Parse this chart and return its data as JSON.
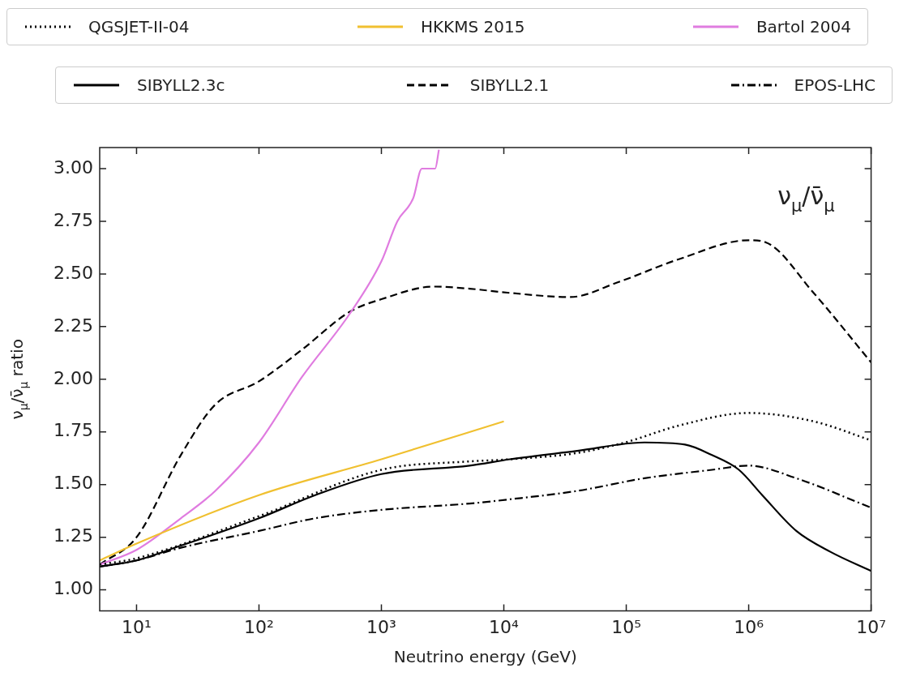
{
  "chart_data": {
    "type": "line",
    "xlabel": "Neutrino energy (GeV)",
    "ylabel": "ν$_{μ}$/ν̄$_{μ}$ ratio",
    "annotations": [
      "ν$_{μ}$/ν̄$_{μ}$"
    ],
    "log": "x",
    "xlim": [
      5,
      10000000
    ],
    "ylim": [
      0.9,
      3.1
    ],
    "xticks": [
      {
        "value": 10,
        "label": "10¹"
      },
      {
        "value": 100,
        "label": "10²"
      },
      {
        "value": 1000,
        "label": "10³"
      },
      {
        "value": 10000,
        "label": "10⁴"
      },
      {
        "value": 100000,
        "label": "10⁵"
      },
      {
        "value": 1000000,
        "label": "10⁶"
      },
      {
        "value": 10000000,
        "label": "10⁷"
      }
    ],
    "yticks": [
      {
        "value": 1,
        "label": "1.00"
      },
      {
        "value": 1.25,
        "label": "1.25"
      },
      {
        "value": 1.5,
        "label": "1.50"
      },
      {
        "value": 1.75,
        "label": "1.75"
      },
      {
        "value": 2,
        "label": "2.00"
      },
      {
        "value": 2.25,
        "label": "2.25"
      },
      {
        "value": 2.5,
        "label": "2.50"
      },
      {
        "value": 2.75,
        "label": "2.75"
      },
      {
        "value": 3,
        "label": "3.00"
      }
    ],
    "grid": false,
    "legend": "top",
    "marker": "none",
    "series": [
      {
        "name": "QGSJET-II-04",
        "color": "#000000",
        "line_style": "dotted",
        "x": [
          5,
          10,
          100,
          1000,
          5250,
          11200,
          39800,
          97700,
          269000,
          1000000,
          3390000,
          10000000
        ],
        "values": [
          1.12,
          1.15,
          1.35,
          1.57,
          1.61,
          1.62,
          1.65,
          1.7,
          1.78,
          1.84,
          1.8,
          1.71
        ]
      },
      {
        "name": "HKKMS 2015",
        "color": "#f0c030",
        "line_style": "solid",
        "x": [
          5,
          10,
          100,
          1000,
          10000
        ],
        "values": [
          1.14,
          1.22,
          1.45,
          1.62,
          1.8
        ]
      },
      {
        "name": "Bartol 2004",
        "color": "#e07ce0",
        "line_style": "solid",
        "x": [
          5,
          10,
          23,
          44,
          100,
          224,
          550,
          1000,
          1350,
          1820,
          2140,
          2750,
          2950
        ],
        "values": [
          1.12,
          1.19,
          1.34,
          1.47,
          1.7,
          2.01,
          2.31,
          2.56,
          2.75,
          2.86,
          3.0,
          3.0,
          3.09
        ]
      },
      {
        "name": "SIBYLL2.3c",
        "color": "#000000",
        "line_style": "solid",
        "x": [
          5,
          10,
          23,
          100,
          288,
          1000,
          5250,
          11200,
          39800,
          141000,
          302000,
          501000,
          832000,
          1290000,
          2450000,
          4680000,
          10000000
        ],
        "values": [
          1.11,
          1.14,
          1.21,
          1.34,
          1.45,
          1.55,
          1.59,
          1.62,
          1.66,
          1.7,
          1.69,
          1.64,
          1.57,
          1.45,
          1.28,
          1.18,
          1.09
        ]
      },
      {
        "name": "SIBYLL2.1",
        "color": "#000000",
        "line_style": "dashed",
        "x": [
          5,
          10,
          23,
          44,
          100,
          224,
          550,
          1000,
          2690,
          5250,
          11200,
          34700,
          85100,
          269000,
          1000000,
          1380000,
          3390000,
          10000000
        ],
        "values": [
          1.12,
          1.25,
          1.64,
          1.88,
          1.99,
          2.14,
          2.32,
          2.38,
          2.44,
          2.43,
          2.41,
          2.39,
          2.46,
          2.57,
          2.66,
          2.65,
          2.41,
          2.08
        ]
      },
      {
        "name": "EPOS-LHC",
        "color": "#000000",
        "line_style": "dashdot",
        "x": [
          5,
          10,
          23,
          100,
          288,
          1000,
          5250,
          11200,
          39800,
          141000,
          501000,
          1000000,
          2450000,
          10000000
        ],
        "values": [
          1.11,
          1.14,
          1.2,
          1.28,
          1.34,
          1.38,
          1.41,
          1.43,
          1.47,
          1.53,
          1.57,
          1.59,
          1.53,
          1.39
        ]
      }
    ]
  }
}
